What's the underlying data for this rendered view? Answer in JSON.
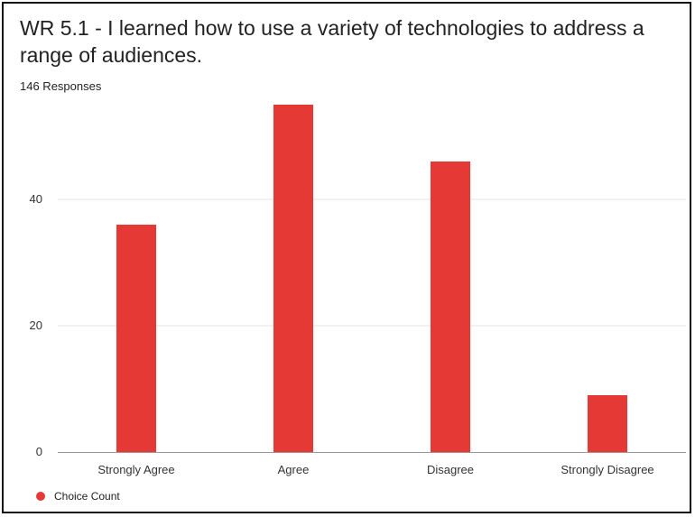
{
  "title": "WR 5.1 - I learned how to use a variety of technologies to address a range of audiences.",
  "subtitle": "146 Responses",
  "colors": {
    "bar": "#e53935",
    "grid": "#e6e6e6",
    "axis": "#999999"
  },
  "chart_data": {
    "type": "bar",
    "title": "WR 5.1 - I learned how to use a variety of technologies to address a range of audiences.",
    "subtitle": "146 Responses",
    "categories": [
      "Strongly Agree",
      "Agree",
      "Disagree",
      "Strongly Disagree"
    ],
    "series": [
      {
        "name": "Choice Count",
        "values": [
          36,
          55,
          46,
          9
        ]
      }
    ],
    "ylim": [
      0,
      56
    ],
    "yticks": [
      0,
      20,
      40
    ],
    "grid": true,
    "legend": "bottom-left"
  }
}
